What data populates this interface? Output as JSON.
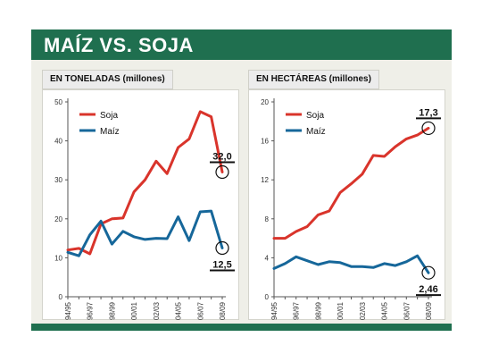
{
  "title": "MAÍZ VS. SOJA",
  "colors": {
    "accent": "#1f6f4f",
    "soja": "#d9342b",
    "maiz": "#16679a"
  },
  "chart_data": [
    {
      "type": "line",
      "panel_label": "EN TONELADAS (millones)",
      "x": [
        "94/95",
        "95/96",
        "96/97",
        "97/98",
        "98/99",
        "99/00",
        "00/01",
        "01/02",
        "02/03",
        "03/04",
        "04/05",
        "05/06",
        "06/07",
        "07/08",
        "08/09"
      ],
      "tick_labels": [
        "94/95",
        "96/97",
        "98/99",
        "00/01",
        "02/03",
        "04/05",
        "06/07",
        "08/09"
      ],
      "yticks": [
        0,
        10,
        20,
        30,
        40,
        50
      ],
      "ylim": [
        0,
        50
      ],
      "series": [
        {
          "name": "Soja",
          "color": "#d9342b",
          "values": [
            12.0,
            12.4,
            11.0,
            18.7,
            20.0,
            20.2,
            26.9,
            30.0,
            34.8,
            31.6,
            38.3,
            40.5,
            47.5,
            46.2,
            32.0
          ]
        },
        {
          "name": "Maíz",
          "color": "#16679a",
          "values": [
            11.4,
            10.5,
            15.9,
            19.4,
            13.5,
            16.8,
            15.4,
            14.7,
            15.0,
            14.9,
            20.5,
            14.4,
            21.8,
            22.0,
            12.5
          ]
        }
      ],
      "annotations": [
        {
          "series": "Soja",
          "index": 14,
          "label": "32,0"
        },
        {
          "series": "Maíz",
          "index": 14,
          "label": "12,5"
        }
      ]
    },
    {
      "type": "line",
      "panel_label": "EN HECTÁREAS (millones)",
      "x": [
        "94/95",
        "95/96",
        "96/97",
        "97/98",
        "98/99",
        "99/00",
        "00/01",
        "01/02",
        "02/03",
        "03/04",
        "04/05",
        "05/06",
        "06/07",
        "07/08",
        "08/09"
      ],
      "tick_labels": [
        "94/95",
        "96/97",
        "98/99",
        "00/01",
        "02/03",
        "04/05",
        "06/07",
        "08/09"
      ],
      "yticks": [
        0,
        4,
        8,
        12,
        16,
        20
      ],
      "ylim": [
        0,
        20
      ],
      "series": [
        {
          "name": "Soja",
          "color": "#d9342b",
          "values": [
            6.0,
            6.0,
            6.7,
            7.2,
            8.4,
            8.8,
            10.7,
            11.6,
            12.6,
            14.5,
            14.4,
            15.4,
            16.2,
            16.6,
            17.3
          ]
        },
        {
          "name": "Maíz",
          "color": "#16679a",
          "values": [
            2.9,
            3.4,
            4.1,
            3.7,
            3.3,
            3.6,
            3.5,
            3.1,
            3.1,
            3.0,
            3.4,
            3.2,
            3.6,
            4.2,
            2.46
          ]
        }
      ],
      "annotations": [
        {
          "series": "Soja",
          "index": 14,
          "label": "17,3"
        },
        {
          "series": "Maíz",
          "index": 14,
          "label": "2,46"
        }
      ]
    }
  ]
}
